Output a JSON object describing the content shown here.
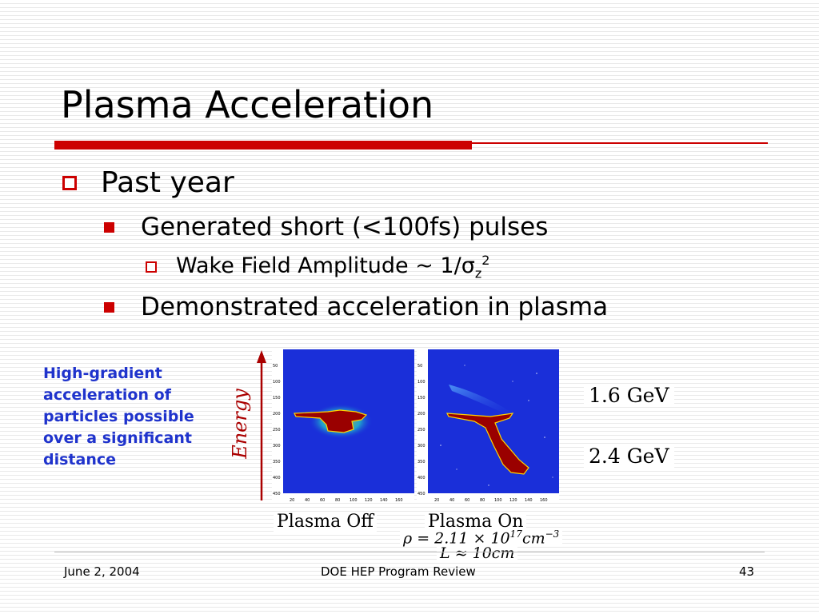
{
  "title": "Plasma Acceleration",
  "bullets": {
    "level1": "Past year",
    "level2a": "Generated short (<100fs) pulses",
    "level3": {
      "prefix": "Wake Field Amplitude ~ 1/",
      "sigma": "σ",
      "sub": "z",
      "sup": "2"
    },
    "level2b": "Demonstrated acceleration in plasma"
  },
  "caption": "High-gradient acceleration of particles possible over a significant distance",
  "figure": {
    "energy_axis_label": "Energy",
    "energy_markers": [
      "1.6 GeV",
      "2.4 GeV"
    ],
    "panels": [
      {
        "label": "Plasma Off",
        "y_ticks": [
          "50",
          "100",
          "150",
          "200",
          "250",
          "300",
          "350",
          "400",
          "450"
        ],
        "x_ticks": [
          "20",
          "40",
          "60",
          "80",
          "100",
          "120",
          "140",
          "160"
        ]
      },
      {
        "label": "Plasma On",
        "y_ticks": [
          "50",
          "100",
          "150",
          "200",
          "250",
          "300",
          "350",
          "400",
          "450"
        ],
        "x_ticks": [
          "20",
          "40",
          "60",
          "80",
          "100",
          "120",
          "140",
          "160"
        ]
      }
    ],
    "density": {
      "prefix": "ρ = 2.11 × 10",
      "exp": "17",
      "unit": "cm",
      "unit_exp": "−3"
    },
    "length": "L ≈ 10cm"
  },
  "footer": {
    "date": "June 2, 2004",
    "center": "DOE HEP Program Review",
    "page": "43"
  },
  "colors": {
    "accent_red": "#cc0000",
    "caption_blue": "#1f33cc",
    "plot_bg": "#1a2fd9"
  }
}
